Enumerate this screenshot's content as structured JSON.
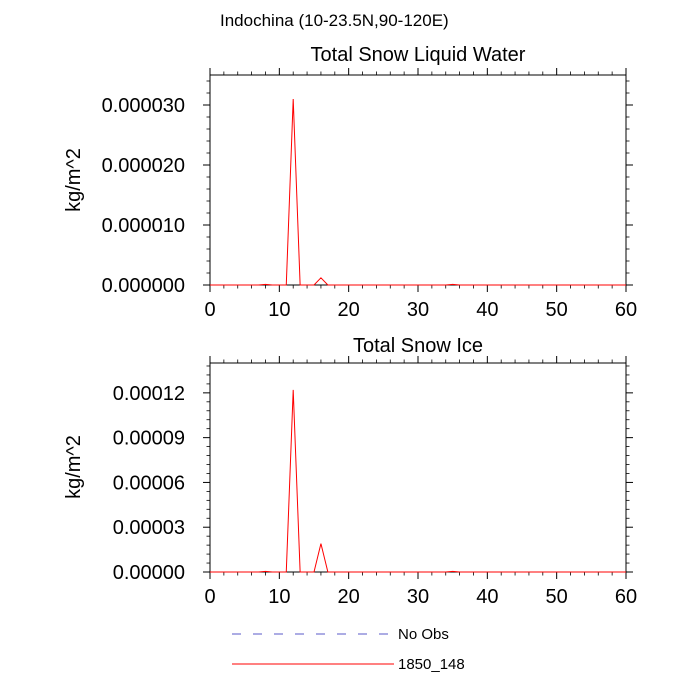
{
  "figure": {
    "region_label": "Indochina (10-23.5N,90-120E)"
  },
  "chart_data": [
    {
      "type": "line",
      "title": "Total Snow Liquid Water",
      "xlabel": "",
      "ylabel": "kg/m^2",
      "xlim": [
        0,
        60
      ],
      "ylim": [
        0,
        3.5e-05
      ],
      "xticks": [
        0,
        10,
        20,
        30,
        40,
        50,
        60
      ],
      "xtick_labels": [
        "0",
        "10",
        "20",
        "30",
        "40",
        "50",
        "60"
      ],
      "yticks": [
        0,
        1e-05,
        2e-05,
        3e-05
      ],
      "ytick_labels": [
        "0.000000",
        "0.000010",
        "0.000020",
        "0.000030"
      ],
      "grid": false,
      "series": [
        {
          "name": "1850_148",
          "color": "#ff0000",
          "x": [
            0,
            1,
            2,
            3,
            4,
            5,
            6,
            7,
            8,
            9,
            10,
            11,
            12,
            13,
            14,
            15,
            16,
            17,
            18,
            19,
            20,
            21,
            22,
            23,
            24,
            25,
            26,
            27,
            28,
            29,
            30,
            31,
            32,
            33,
            34,
            35,
            36,
            37,
            38,
            39,
            40,
            41,
            42,
            43,
            44,
            45,
            46,
            47,
            48,
            49,
            50,
            51,
            52,
            53,
            54,
            55,
            56,
            57,
            58,
            59,
            60
          ],
          "values": [
            0,
            0,
            0,
            0,
            0,
            0,
            0,
            0,
            1e-07,
            0,
            0,
            0,
            3.1e-05,
            0,
            0,
            0,
            1.2e-06,
            0,
            0,
            0,
            0,
            0,
            0,
            0,
            0,
            0,
            0,
            0,
            0,
            0,
            0,
            0,
            0,
            0,
            0,
            1e-07,
            0,
            0,
            0,
            0,
            0,
            0,
            0,
            0,
            0,
            0,
            0,
            0,
            0,
            0,
            0,
            0,
            0,
            0,
            0,
            0,
            0,
            0,
            0,
            0,
            0
          ]
        }
      ]
    },
    {
      "type": "line",
      "title": "Total Snow Ice",
      "xlabel": "",
      "ylabel": "kg/m^2",
      "xlim": [
        0,
        60
      ],
      "ylim": [
        0,
        0.00014
      ],
      "xticks": [
        0,
        10,
        20,
        30,
        40,
        50,
        60
      ],
      "xtick_labels": [
        "0",
        "10",
        "20",
        "30",
        "40",
        "50",
        "60"
      ],
      "yticks": [
        0,
        3e-05,
        6e-05,
        9e-05,
        0.00012
      ],
      "ytick_labels": [
        "0.00000",
        "0.00003",
        "0.00006",
        "0.00009",
        "0.00012"
      ],
      "grid": false,
      "series": [
        {
          "name": "1850_148",
          "color": "#ff0000",
          "x": [
            0,
            1,
            2,
            3,
            4,
            5,
            6,
            7,
            8,
            9,
            10,
            11,
            12,
            13,
            14,
            15,
            16,
            17,
            18,
            19,
            20,
            21,
            22,
            23,
            24,
            25,
            26,
            27,
            28,
            29,
            30,
            31,
            32,
            33,
            34,
            35,
            36,
            37,
            38,
            39,
            40,
            41,
            42,
            43,
            44,
            45,
            46,
            47,
            48,
            49,
            50,
            51,
            52,
            53,
            54,
            55,
            56,
            57,
            58,
            59,
            60
          ],
          "values": [
            0,
            0,
            0,
            0,
            0,
            0,
            0,
            0,
            4e-07,
            0,
            0,
            0,
            0.000122,
            0,
            0,
            0,
            1.9e-05,
            0,
            0,
            0,
            0,
            0,
            0,
            0,
            0,
            0,
            0,
            0,
            0,
            0,
            0,
            0,
            0,
            0,
            0,
            4e-07,
            0,
            0,
            0,
            0,
            0,
            0,
            0,
            0,
            0,
            0,
            0,
            0,
            0,
            0,
            0,
            0,
            0,
            0,
            0,
            0,
            0,
            0,
            0,
            0,
            0
          ]
        }
      ]
    }
  ],
  "legend": {
    "placement": "bottom",
    "entries": [
      {
        "label": "No Obs",
        "color": "#5a5ac8",
        "style": "dashed"
      },
      {
        "label": "1850_148",
        "color": "#ff0000",
        "style": "solid"
      }
    ]
  }
}
